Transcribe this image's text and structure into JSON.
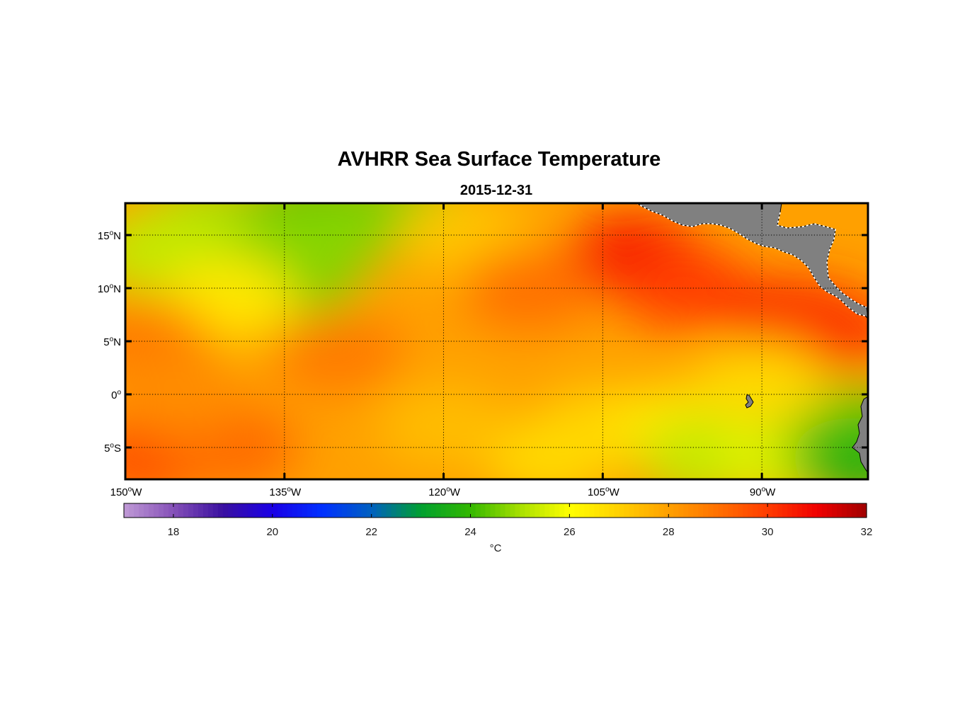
{
  "chart_data": {
    "type": "heatmap",
    "title": "AVHRR Sea Surface Temperature",
    "subtitle": "2015-12-31",
    "variable": "sea surface temperature",
    "units_label": "°C",
    "x_axis": {
      "range": [
        -150,
        -80
      ],
      "ticks": [
        {
          "value": -150,
          "num": "150",
          "hemi": "W"
        },
        {
          "value": -135,
          "num": "135",
          "hemi": "W"
        },
        {
          "value": -120,
          "num": "120",
          "hemi": "W"
        },
        {
          "value": -105,
          "num": "105",
          "hemi": "W"
        },
        {
          "value": -90,
          "num": "90",
          "hemi": "W"
        }
      ]
    },
    "y_axis": {
      "range": [
        -8,
        18
      ],
      "ticks": [
        {
          "value": 15,
          "num": "15",
          "hemi": "N"
        },
        {
          "value": 10,
          "num": "10",
          "hemi": "N"
        },
        {
          "value": 5,
          "num": "5",
          "hemi": "N"
        },
        {
          "value": 0,
          "num": "0",
          "hemi": ""
        },
        {
          "value": -5,
          "num": "5",
          "hemi": "S"
        }
      ]
    },
    "grid": true,
    "colorbar": {
      "range": [
        17,
        32
      ],
      "ticks": [
        18,
        20,
        22,
        24,
        26,
        28,
        30,
        32
      ],
      "stops": [
        {
          "v": 17.0,
          "color": "#c09ad6"
        },
        {
          "v": 18.0,
          "color": "#8550b8"
        },
        {
          "v": 19.0,
          "color": "#3a10a0"
        },
        {
          "v": 20.0,
          "color": "#1a00e6"
        },
        {
          "v": 21.0,
          "color": "#0030ff"
        },
        {
          "v": 22.0,
          "color": "#0060c0"
        },
        {
          "v": 23.0,
          "color": "#00a030"
        },
        {
          "v": 24.0,
          "color": "#33b800"
        },
        {
          "v": 25.0,
          "color": "#a8e000"
        },
        {
          "v": 26.0,
          "color": "#ffff00"
        },
        {
          "v": 27.0,
          "color": "#ffd000"
        },
        {
          "v": 28.0,
          "color": "#ffa000"
        },
        {
          "v": 29.0,
          "color": "#ff7000"
        },
        {
          "v": 30.0,
          "color": "#ff3c00"
        },
        {
          "v": 31.0,
          "color": "#f00000"
        },
        {
          "v": 32.0,
          "color": "#a00000"
        }
      ]
    },
    "sst_field": {
      "background_value": 28.0,
      "anomalies": [
        {
          "lon": -142,
          "lat": 16,
          "value": 25.0
        },
        {
          "lon": -147,
          "lat": 13.5,
          "value": 25.3
        },
        {
          "lon": -132,
          "lat": 17,
          "value": 24.4
        },
        {
          "lon": -124,
          "lat": 17,
          "value": 24.6
        },
        {
          "lon": -133,
          "lat": 13,
          "value": 24.8
        },
        {
          "lon": -135,
          "lat": 10,
          "value": 24.6
        },
        {
          "lon": -118,
          "lat": 15,
          "value": 27.2
        },
        {
          "lon": -140,
          "lat": 9,
          "value": 26.5
        },
        {
          "lon": -102,
          "lat": 13,
          "value": 30.6
        },
        {
          "lon": -97,
          "lat": 10,
          "value": 30.0
        },
        {
          "lon": -87,
          "lat": 7,
          "value": 30.4
        },
        {
          "lon": -84,
          "lat": 6,
          "value": 30.2
        },
        {
          "lon": -112,
          "lat": 10,
          "value": 29.0
        },
        {
          "lon": -148,
          "lat": 5,
          "value": 28.8
        },
        {
          "lon": -130,
          "lat": 4,
          "value": 28.8
        },
        {
          "lon": -148,
          "lat": -6,
          "value": 29.6
        },
        {
          "lon": -140,
          "lat": -5,
          "value": 29.1
        },
        {
          "lon": -145,
          "lat": 0,
          "value": 28.4
        },
        {
          "lon": -105,
          "lat": -3,
          "value": 27.0
        },
        {
          "lon": -98,
          "lat": -3,
          "value": 26.5
        },
        {
          "lon": -95,
          "lat": -6,
          "value": 25.3
        },
        {
          "lon": -88,
          "lat": -6,
          "value": 25.6
        },
        {
          "lon": -82,
          "lat": -3,
          "value": 24.6
        },
        {
          "lon": -81,
          "lat": -6,
          "value": 23.8
        },
        {
          "lon": -110,
          "lat": -6,
          "value": 26.8
        },
        {
          "lon": -120,
          "lat": -3,
          "value": 27.4
        },
        {
          "lon": -90,
          "lat": 1,
          "value": 26.8
        }
      ]
    }
  }
}
